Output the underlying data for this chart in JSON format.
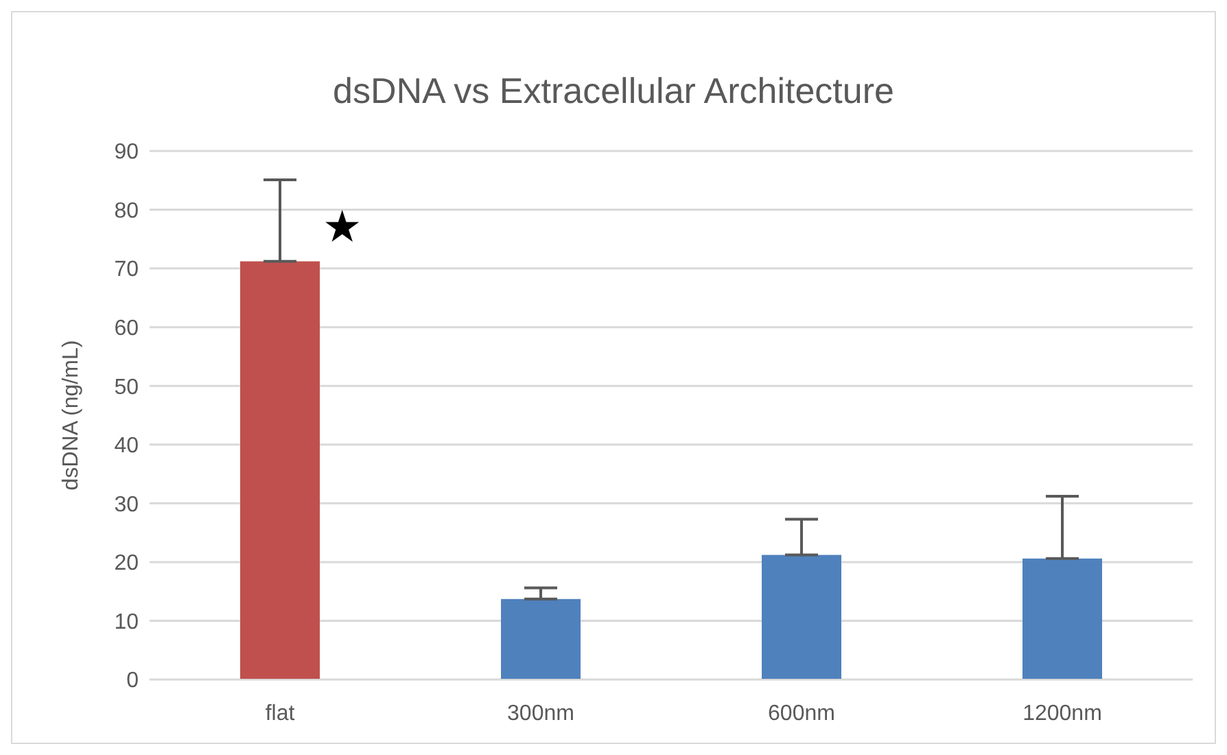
{
  "chart_data": {
    "type": "bar",
    "title": "dsDNA vs Extracellular Architecture",
    "ylabel": "dsDNA (ng/mL)",
    "categories": [
      "flat",
      "300nm",
      "600nm",
      "1200nm"
    ],
    "values": [
      71.2,
      13.7,
      21.2,
      20.6
    ],
    "colors": [
      "#c0504d",
      "#4f81bd",
      "#4f81bd",
      "#4f81bd"
    ],
    "errors": [
      [
        71.2,
        85.1
      ],
      [
        13.7,
        15.6
      ],
      [
        21.2,
        27.3
      ],
      [
        20.6,
        31.2
      ]
    ],
    "annotations": [
      "★"
    ],
    "ylim": [
      0,
      90
    ],
    "yticks": [
      0,
      10,
      20,
      30,
      40,
      50,
      60,
      70,
      80,
      90
    ],
    "grid": "y"
  }
}
